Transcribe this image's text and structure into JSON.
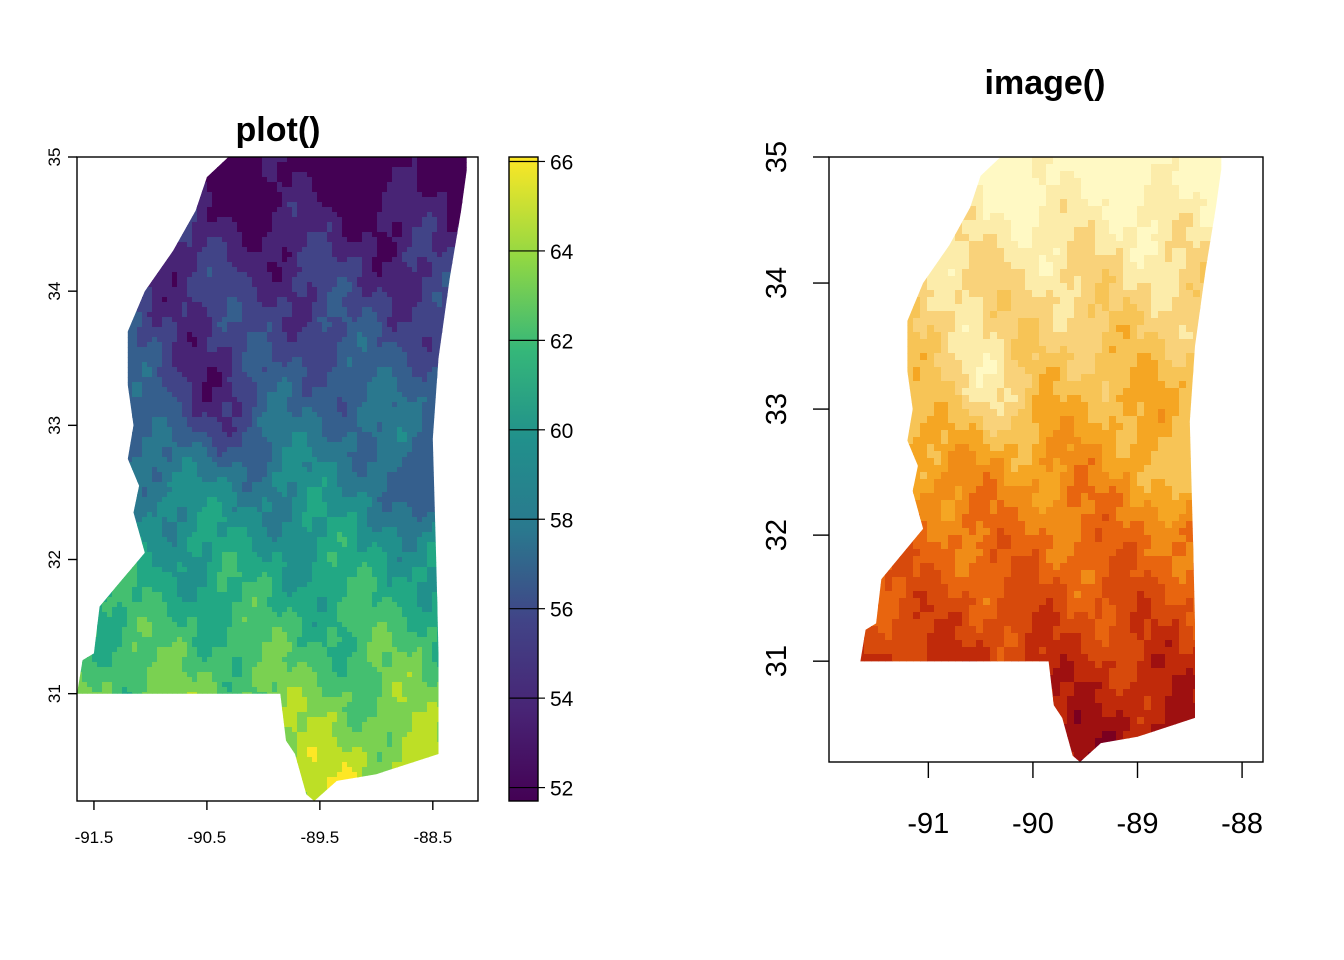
{
  "chart_data": [
    {
      "type": "heatmap",
      "title": "plot()",
      "xlabel": "",
      "ylabel": "",
      "x_ticks": [
        -91.5,
        -90.5,
        -89.5,
        -88.5
      ],
      "y_ticks": [
        31,
        32,
        33,
        34,
        35
      ],
      "xlim": [
        -91.65,
        -88.1
      ],
      "ylim": [
        30.2,
        35.0
      ],
      "legend": {
        "position": "right",
        "range": [
          51.7,
          66.1
        ],
        "ticks": [
          52,
          54,
          56,
          58,
          60,
          62,
          64,
          66
        ],
        "palette": [
          "#440154",
          "#3b528b",
          "#21908c",
          "#5dc863",
          "#fde725"
        ]
      },
      "grid": false
    },
    {
      "type": "heatmap",
      "title": "image()",
      "xlabel": "",
      "ylabel": "",
      "x_ticks": [
        -91,
        -90,
        -89,
        -88
      ],
      "y_ticks": [
        31,
        32,
        33,
        34,
        35
      ],
      "xlim": [
        -91.95,
        -87.8
      ],
      "ylim": [
        30.2,
        35.0
      ],
      "legend": null,
      "palette": [
        "#fff9c4",
        "#f9d27a",
        "#f5a623",
        "#e8650f",
        "#c02a0a",
        "#7a0020"
      ],
      "grid": false
    }
  ]
}
